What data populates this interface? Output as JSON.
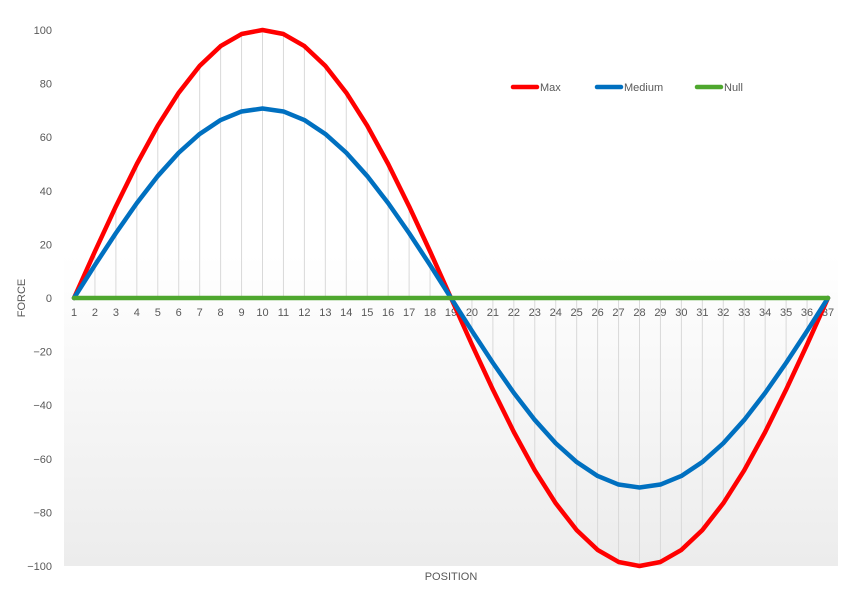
{
  "chart_data": {
    "type": "line",
    "xlabel": "POSITION",
    "ylabel": "FORCE",
    "ylim": [
      -100,
      100
    ],
    "yticks": [
      100,
      80,
      60,
      40,
      20,
      0,
      -20,
      -40,
      -60,
      -80,
      -100
    ],
    "categories": [
      "1",
      "2",
      "3",
      "4",
      "5",
      "6",
      "7",
      "8",
      "9",
      "10",
      "11",
      "12",
      "13",
      "14",
      "15",
      "16",
      "17",
      "18",
      "19",
      "20",
      "21",
      "22",
      "23",
      "24",
      "25",
      "26",
      "27",
      "28",
      "29",
      "30",
      "31",
      "32",
      "33",
      "34",
      "35",
      "36",
      "37"
    ],
    "legend_position": "top-right",
    "grid": "vertical drop lines",
    "series": [
      {
        "name": "Max",
        "color": "#ff0000",
        "values": [
          0,
          17.4,
          34.2,
          50,
          64.3,
          76.6,
          86.6,
          94,
          98.5,
          100,
          98.5,
          94,
          86.6,
          76.6,
          64.3,
          50,
          34.2,
          17.4,
          0,
          -17.4,
          -34.2,
          -50,
          -64.3,
          -76.6,
          -86.6,
          -94,
          -98.5,
          -100,
          -98.5,
          -94,
          -86.6,
          -76.6,
          -64.3,
          -50,
          -34.2,
          -17.4,
          0
        ]
      },
      {
        "name": "Medium",
        "color": "#0070c0",
        "values": [
          0,
          12.3,
          24.2,
          35.4,
          45.5,
          54.2,
          61.2,
          66.4,
          69.6,
          70.7,
          69.6,
          66.4,
          61.2,
          54.2,
          45.5,
          35.4,
          24.2,
          12.3,
          0,
          -12.3,
          -24.2,
          -35.4,
          -45.5,
          -54.2,
          -61.2,
          -66.4,
          -69.6,
          -70.7,
          -69.6,
          -66.4,
          -61.2,
          -54.2,
          -45.5,
          -35.4,
          -24.2,
          -12.3,
          0
        ]
      },
      {
        "name": "Null",
        "color": "#4ea72e",
        "values": [
          0,
          0,
          0,
          0,
          0,
          0,
          0,
          0,
          0,
          0,
          0,
          0,
          0,
          0,
          0,
          0,
          0,
          0,
          0,
          0,
          0,
          0,
          0,
          0,
          0,
          0,
          0,
          0,
          0,
          0,
          0,
          0,
          0,
          0,
          0,
          0,
          0
        ]
      }
    ]
  }
}
